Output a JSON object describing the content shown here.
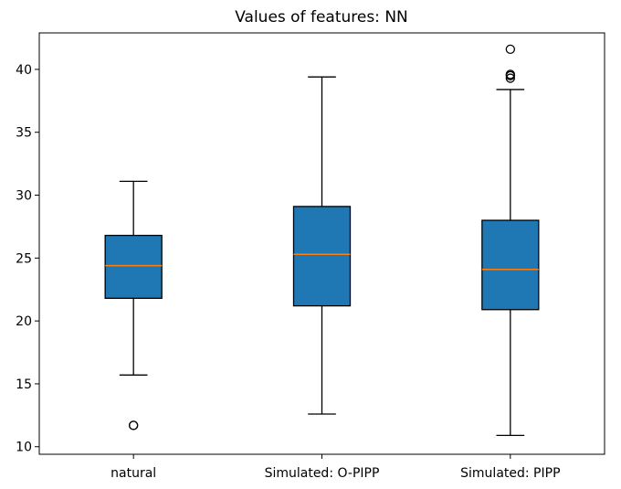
{
  "chart_data": {
    "type": "box",
    "title": "Values of features: NN",
    "xlabel": "",
    "ylabel": "",
    "ylim": [
      9.4,
      42.9
    ],
    "yticks": [
      10,
      15,
      20,
      25,
      30,
      35,
      40
    ],
    "grid": false,
    "colors": {
      "box_fill": "#1f77b4",
      "median": "#ff7f0e",
      "line": "#000000"
    },
    "categories": [
      "natural",
      "Simulated: O-PIPP",
      "Simulated: PIPP"
    ],
    "boxes": [
      {
        "label": "natural",
        "whisker_low": 15.7,
        "q1": 21.8,
        "median": 24.4,
        "q3": 26.8,
        "whisker_high": 31.1,
        "outliers": [
          11.7,
          11.7
        ]
      },
      {
        "label": "Simulated: O-PIPP",
        "whisker_low": 12.6,
        "q1": 21.2,
        "median": 25.3,
        "q3": 29.1,
        "whisker_high": 39.4,
        "outliers": []
      },
      {
        "label": "Simulated: PIPP",
        "whisker_low": 10.9,
        "q1": 20.9,
        "median": 24.1,
        "q3": 28.0,
        "whisker_high": 38.4,
        "outliers": [
          39.3,
          39.5,
          39.6,
          41.6
        ]
      }
    ]
  }
}
